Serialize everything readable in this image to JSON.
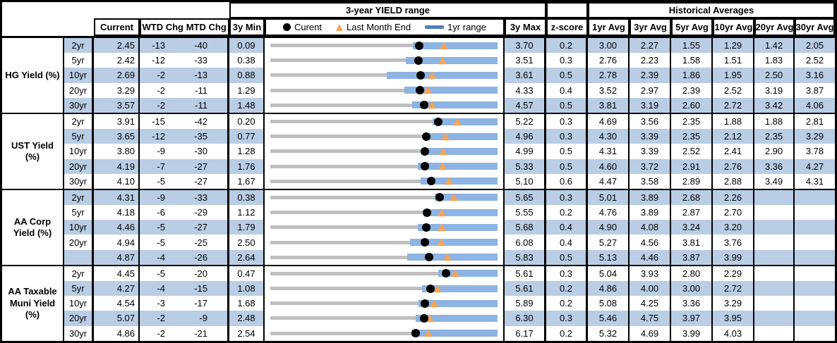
{
  "colors": {
    "stripe": "#B9CDE4",
    "bar": "#8DB4E2",
    "track": "#BFBFBF",
    "marker_current": "#000000",
    "marker_last_month": "#F2A45B",
    "legend_dash": "#4F81BD",
    "border": "#000000"
  },
  "chart_data": {
    "type": "table",
    "title": "3-year YIELD range",
    "historical_title": "Historical Averages",
    "columns": {
      "current": "Current",
      "wtd_chg": "WTD Chg",
      "mtd_chg": "MTD Chg",
      "min_3y": "3y Min",
      "max_3y": "3y Max",
      "z_score": "z-score",
      "avg_headers": [
        "1yr Avg",
        "3yr Avg",
        "5yr Avg",
        "10yr Avg",
        "20yr Avg",
        "30yr Avg"
      ]
    },
    "legend": [
      {
        "marker": "dot",
        "label": "Curent"
      },
      {
        "marker": "triangle",
        "label": "Last Month End"
      },
      {
        "marker": "dash",
        "label": "1yr range"
      }
    ],
    "groups": [
      {
        "label": "HG Yield (%)",
        "rows": [
          {
            "maturity": "2yr",
            "current": "2.45",
            "wtd_chg": "-13",
            "mtd_chg": "-40",
            "min_3y": "0.09",
            "max_3y": "3.70",
            "z_score": "0.2",
            "avgs": [
              "3.00",
              "2.27",
              "1.55",
              "1.29",
              "1.42",
              "2.05"
            ],
            "range": {
              "min": 0.09,
              "max": 3.7,
              "current": 2.45,
              "last_month_end": 2.85,
              "yr1_low": 2.36,
              "yr1_high": 3.7
            }
          },
          {
            "maturity": "5yr",
            "current": "2.42",
            "wtd_chg": "-12",
            "mtd_chg": "-33",
            "min_3y": "0.38",
            "max_3y": "3.51",
            "z_score": "0.3",
            "avgs": [
              "2.76",
              "2.23",
              "1.58",
              "1.51",
              "1.83",
              "2.52"
            ],
            "range": {
              "min": 0.38,
              "max": 3.51,
              "current": 2.42,
              "last_month_end": 2.75,
              "yr1_low": 2.25,
              "yr1_high": 3.51
            }
          },
          {
            "maturity": "10yr",
            "current": "2.69",
            "wtd_chg": "-2",
            "mtd_chg": "-13",
            "min_3y": "0.88",
            "max_3y": "3.61",
            "z_score": "0.5",
            "avgs": [
              "2.78",
              "2.39",
              "1.86",
              "1.95",
              "2.50",
              "3.16"
            ],
            "range": {
              "min": 0.88,
              "max": 3.61,
              "current": 2.69,
              "last_month_end": 2.82,
              "yr1_low": 2.28,
              "yr1_high": 3.61
            }
          },
          {
            "maturity": "20yr",
            "current": "3.29",
            "wtd_chg": "-2",
            "mtd_chg": "-11",
            "min_3y": "1.29",
            "max_3y": "4.33",
            "z_score": "0.4",
            "avgs": [
              "3.52",
              "2.97",
              "2.39",
              "2.52",
              "3.19",
              "3.87"
            ],
            "range": {
              "min": 1.29,
              "max": 4.33,
              "current": 3.29,
              "last_month_end": 3.4,
              "yr1_low": 3.08,
              "yr1_high": 4.33
            }
          },
          {
            "maturity": "30yr",
            "current": "3.57",
            "wtd_chg": "-2",
            "mtd_chg": "-11",
            "min_3y": "1.48",
            "max_3y": "4.57",
            "z_score": "0.5",
            "avgs": [
              "3.81",
              "3.19",
              "2.60",
              "2.72",
              "3.42",
              "4.06"
            ],
            "range": {
              "min": 1.48,
              "max": 4.57,
              "current": 3.57,
              "last_month_end": 3.68,
              "yr1_low": 3.41,
              "yr1_high": 4.57
            }
          }
        ]
      },
      {
        "label": "UST Yield (%)",
        "rows": [
          {
            "maturity": "2yr",
            "current": "3.91",
            "wtd_chg": "-15",
            "mtd_chg": "-42",
            "min_3y": "0.20",
            "max_3y": "5.22",
            "z_score": "0.3",
            "avgs": [
              "4.69",
              "3.56",
              "2.35",
              "1.88",
              "1.88",
              "2.81"
            ],
            "range": {
              "min": 0.2,
              "max": 5.22,
              "current": 3.91,
              "last_month_end": 4.33,
              "yr1_low": 3.78,
              "yr1_high": 5.22
            }
          },
          {
            "maturity": "5yr",
            "current": "3.65",
            "wtd_chg": "-12",
            "mtd_chg": "-35",
            "min_3y": "0.77",
            "max_3y": "4.96",
            "z_score": "0.3",
            "avgs": [
              "4.30",
              "3.39",
              "2.35",
              "2.12",
              "2.35",
              "3.29"
            ],
            "range": {
              "min": 0.77,
              "max": 4.96,
              "current": 3.65,
              "last_month_end": 4.0,
              "yr1_low": 3.6,
              "yr1_high": 4.96
            }
          },
          {
            "maturity": "10yr",
            "current": "3.80",
            "wtd_chg": "-9",
            "mtd_chg": "-30",
            "min_3y": "1.28",
            "max_3y": "4.99",
            "z_score": "0.5",
            "avgs": [
              "4.31",
              "3.39",
              "2.52",
              "2.41",
              "2.90",
              "3.78"
            ],
            "range": {
              "min": 1.28,
              "max": 4.99,
              "current": 3.8,
              "last_month_end": 4.1,
              "yr1_low": 3.75,
              "yr1_high": 4.99
            }
          },
          {
            "maturity": "20yr",
            "current": "4.19",
            "wtd_chg": "-7",
            "mtd_chg": "-27",
            "min_3y": "1.76",
            "max_3y": "5.33",
            "z_score": "0.5",
            "avgs": [
              "4.60",
              "3.72",
              "2.91",
              "2.76",
              "3.36",
              "4.27"
            ],
            "range": {
              "min": 1.76,
              "max": 5.33,
              "current": 4.19,
              "last_month_end": 4.46,
              "yr1_low": 4.08,
              "yr1_high": 5.33
            }
          },
          {
            "maturity": "30yr",
            "current": "4.10",
            "wtd_chg": "-5",
            "mtd_chg": "-27",
            "min_3y": "1.67",
            "max_3y": "5.10",
            "z_score": "0.6",
            "avgs": [
              "4.47",
              "3.58",
              "2.89",
              "2.88",
              "3.49",
              "4.31"
            ],
            "range": {
              "min": 1.67,
              "max": 5.1,
              "current": 4.1,
              "last_month_end": 4.37,
              "yr1_low": 3.94,
              "yr1_high": 5.1
            }
          }
        ]
      },
      {
        "label": "AA Corp Yield (%)",
        "rows": [
          {
            "maturity": "2yr",
            "current": "4.31",
            "wtd_chg": "-9",
            "mtd_chg": "-33",
            "min_3y": "0.38",
            "max_3y": "5.65",
            "z_score": "0.3",
            "avgs": [
              "5.01",
              "3.89",
              "2.68",
              "2.26",
              "",
              ""
            ],
            "range": {
              "min": 0.38,
              "max": 5.65,
              "current": 4.31,
              "last_month_end": 4.64,
              "yr1_low": 4.19,
              "yr1_high": 5.65
            }
          },
          {
            "maturity": "5yr",
            "current": "4.18",
            "wtd_chg": "-6",
            "mtd_chg": "-29",
            "min_3y": "1.12",
            "max_3y": "5.55",
            "z_score": "0.2",
            "avgs": [
              "4.76",
              "3.89",
              "2.87",
              "2.70",
              "",
              ""
            ],
            "range": {
              "min": 1.12,
              "max": 5.55,
              "current": 4.18,
              "last_month_end": 4.47,
              "yr1_low": 4.1,
              "yr1_high": 5.55
            }
          },
          {
            "maturity": "10yr",
            "current": "4.46",
            "wtd_chg": "-5",
            "mtd_chg": "-27",
            "min_3y": "1.79",
            "max_3y": "5.68",
            "z_score": "0.4",
            "avgs": [
              "4.90",
              "4.08",
              "3.24",
              "3.20",
              "",
              ""
            ],
            "range": {
              "min": 1.79,
              "max": 5.68,
              "current": 4.46,
              "last_month_end": 4.73,
              "yr1_low": 4.31,
              "yr1_high": 5.68
            }
          },
          {
            "maturity": "20yr",
            "current": "4.94",
            "wtd_chg": "-5",
            "mtd_chg": "-25",
            "min_3y": "2.50",
            "max_3y": "6.08",
            "z_score": "0.4",
            "avgs": [
              "5.27",
              "4.56",
              "3.81",
              "3.76",
              "",
              ""
            ],
            "range": {
              "min": 2.5,
              "max": 6.08,
              "current": 4.94,
              "last_month_end": 5.19,
              "yr1_low": 4.7,
              "yr1_high": 6.08
            }
          },
          {
            "maturity": "",
            "current": "4.87",
            "wtd_chg": "-4",
            "mtd_chg": "-26",
            "min_3y": "2.64",
            "max_3y": "5.83",
            "z_score": "0.5",
            "avgs": [
              "5.13",
              "4.46",
              "3.87",
              "3.99",
              "",
              ""
            ],
            "range": {
              "min": 2.64,
              "max": 5.83,
              "current": 4.87,
              "last_month_end": 5.13,
              "yr1_low": 4.56,
              "yr1_high": 5.83
            }
          }
        ]
      },
      {
        "label": "AA Taxable Muni Yield (%)",
        "rows": [
          {
            "maturity": "2yr",
            "current": "4.45",
            "wtd_chg": "-5",
            "mtd_chg": "-20",
            "min_3y": "0.47",
            "max_3y": "5.61",
            "z_score": "0.3",
            "avgs": [
              "5.04",
              "3.93",
              "2.80",
              "2.29",
              "",
              ""
            ],
            "range": {
              "min": 0.47,
              "max": 5.61,
              "current": 4.45,
              "last_month_end": 4.65,
              "yr1_low": 4.27,
              "yr1_high": 5.61
            }
          },
          {
            "maturity": "5yr",
            "current": "4.27",
            "wtd_chg": "-4",
            "mtd_chg": "-15",
            "min_3y": "1.08",
            "max_3y": "5.61",
            "z_score": "0.2",
            "avgs": [
              "4.86",
              "4.00",
              "3.00",
              "2.72",
              "",
              ""
            ],
            "range": {
              "min": 1.08,
              "max": 5.61,
              "current": 4.27,
              "last_month_end": 4.42,
              "yr1_low": 4.11,
              "yr1_high": 5.61
            }
          },
          {
            "maturity": "10yr",
            "current": "4.54",
            "wtd_chg": "-3",
            "mtd_chg": "-17",
            "min_3y": "1.68",
            "max_3y": "5.89",
            "z_score": "0.2",
            "avgs": [
              "5.08",
              "4.25",
              "3.36",
              "3.29",
              "",
              ""
            ],
            "range": {
              "min": 1.68,
              "max": 5.89,
              "current": 4.54,
              "last_month_end": 4.71,
              "yr1_low": 4.42,
              "yr1_high": 5.89
            }
          },
          {
            "maturity": "20yr",
            "current": "5.07",
            "wtd_chg": "-2",
            "mtd_chg": "-9",
            "min_3y": "2.48",
            "max_3y": "6.30",
            "z_score": "0.3",
            "avgs": [
              "5.46",
              "4.75",
              "3.97",
              "3.95",
              "",
              ""
            ],
            "range": {
              "min": 2.48,
              "max": 6.3,
              "current": 5.07,
              "last_month_end": 5.16,
              "yr1_low": 4.92,
              "yr1_high": 6.3
            }
          },
          {
            "maturity": "30yr",
            "current": "4.86",
            "wtd_chg": "-2",
            "mtd_chg": "-21",
            "min_3y": "2.54",
            "max_3y": "6.17",
            "z_score": "0.2",
            "avgs": [
              "5.32",
              "4.69",
              "3.99",
              "4.03",
              "",
              ""
            ],
            "range": {
              "min": 2.54,
              "max": 6.17,
              "current": 4.86,
              "last_month_end": 5.07,
              "yr1_low": 4.8,
              "yr1_high": 6.17
            }
          }
        ]
      }
    ]
  }
}
